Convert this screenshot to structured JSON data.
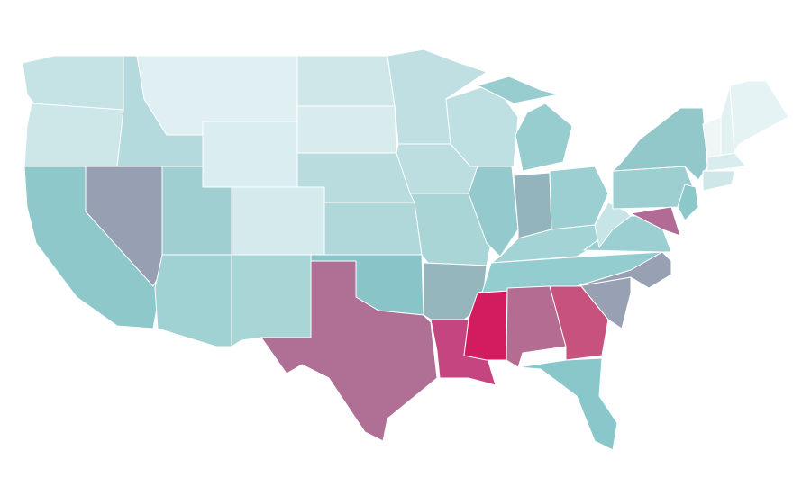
{
  "map": {
    "region_fills": [
      "#c5e3e5",
      "#cde6e8",
      "#8ec8ca",
      "#97a0b3",
      "#b5dadd",
      "#e0f0f2",
      "#daedf0",
      "#9fcfd1",
      "#d4eaec",
      "#a1d2d3",
      "#a8d5d6",
      "#cfe7e9",
      "#d8ecee",
      "#b9dcdf",
      "#b0d8da",
      "#89c4c8",
      "#b06f95",
      "#bfdfe2",
      "#bcdee0",
      "#a9d5d7",
      "#95b6bc",
      "#c4457f",
      "#bfe0e2",
      "#94cacd",
      "#d31b5f",
      "#98cdcf",
      "#94b4bd",
      "#9ccfd1",
      "#a4d3d5",
      "#94cdcf",
      "#b56c93",
      "#c7527d",
      "#89c7ca",
      "#97a1b3",
      "#98a0b3",
      "#9bcfd1",
      "#c7e4e6",
      "#9dcfd1",
      "#93c8cb",
      "#b16b95",
      "#8cc7ca",
      "#f0f5f6",
      "#e3f1f2",
      "#e5f3f4",
      "#daedee",
      "#cfe7e9"
    ]
  }
}
